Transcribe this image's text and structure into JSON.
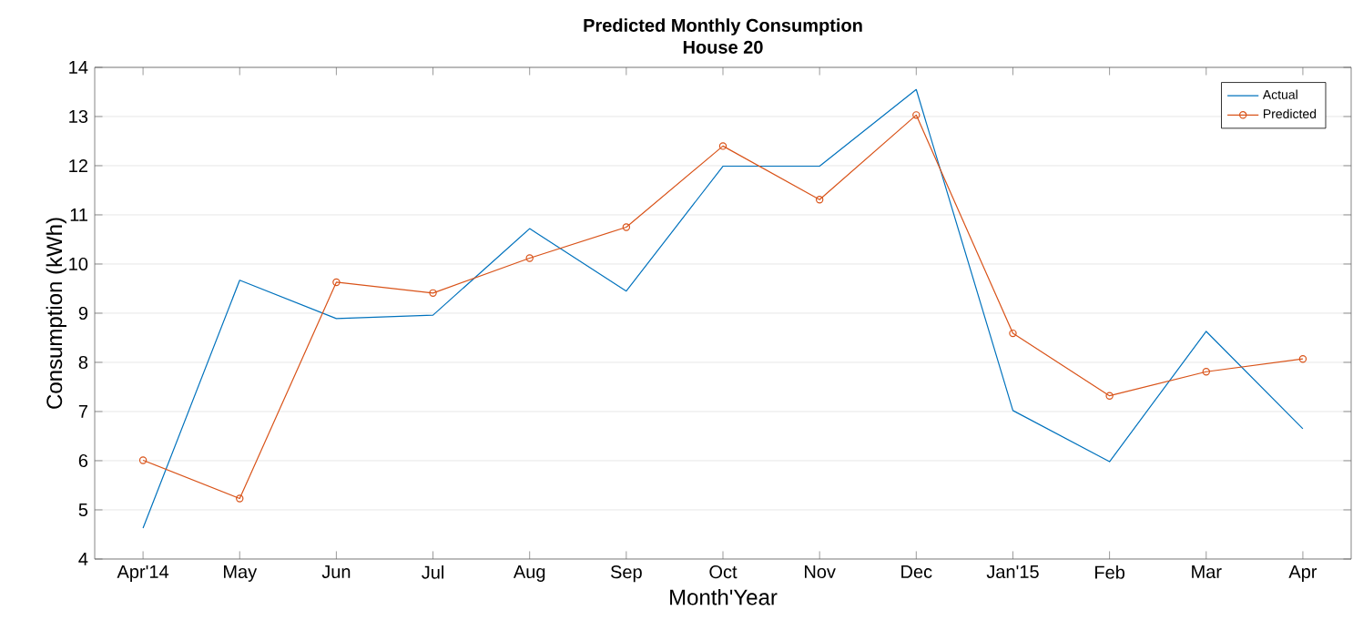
{
  "chart_data": {
    "type": "line",
    "title": "Predicted Monthly Consumption",
    "subtitle": "House 20",
    "xlabel": "Month'Year",
    "ylabel": "Consumption (kWh)",
    "categories": [
      "Apr'14",
      "May",
      "Jun",
      "Jul",
      "Aug",
      "Sep",
      "Oct",
      "Nov",
      "Dec",
      "Jan'15",
      "Feb",
      "Mar",
      "Apr"
    ],
    "series": [
      {
        "name": "Actual",
        "color": "#0072bd",
        "marker": "none",
        "values": [
          4.63,
          9.67,
          8.89,
          8.96,
          10.72,
          9.45,
          11.99,
          11.99,
          13.55,
          7.02,
          5.98,
          8.63,
          6.65
        ]
      },
      {
        "name": "Predicted",
        "color": "#d95319",
        "marker": "circle",
        "values": [
          6.01,
          5.23,
          9.63,
          9.41,
          10.12,
          10.75,
          12.4,
          11.31,
          13.03,
          8.59,
          7.32,
          7.81,
          8.07
        ]
      }
    ],
    "ylim": [
      4,
      14
    ],
    "yticks": [
      4,
      5,
      6,
      7,
      8,
      9,
      10,
      11,
      12,
      13,
      14
    ],
    "grid": "y",
    "legend": "top right",
    "line_style": "solid"
  }
}
